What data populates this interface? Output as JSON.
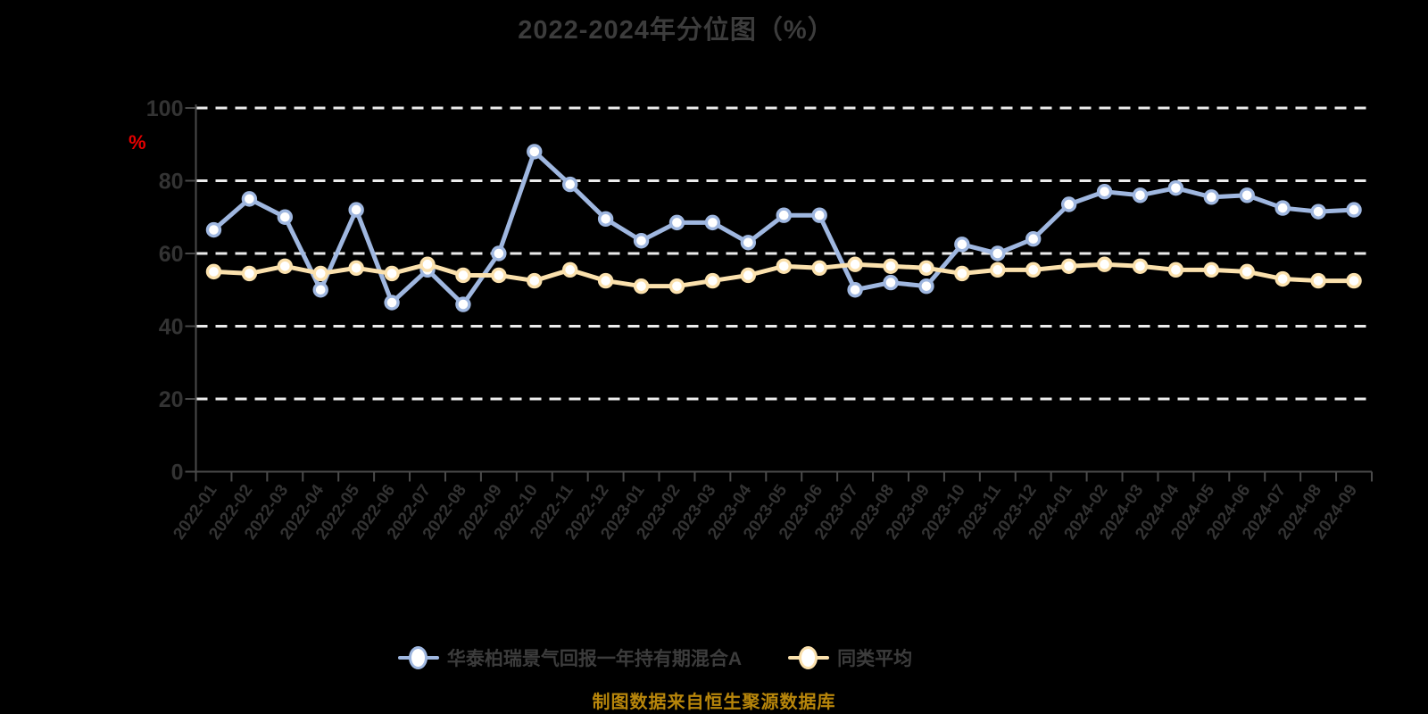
{
  "title": "2022-2024年分位图（%）",
  "y_axis_unit": "%",
  "chart_data": {
    "type": "line",
    "categories": [
      "2022-01",
      "2022-02",
      "2022-03",
      "2022-04",
      "2022-05",
      "2022-06",
      "2022-07",
      "2022-08",
      "2022-09",
      "2022-10",
      "2022-11",
      "2022-12",
      "2023-01",
      "2023-02",
      "2023-03",
      "2023-04",
      "2023-05",
      "2023-06",
      "2023-07",
      "2023-08",
      "2023-09",
      "2023-10",
      "2023-11",
      "2023-12",
      "2024-01",
      "2024-02",
      "2024-03",
      "2024-04",
      "2024-05",
      "2024-06",
      "2024-07",
      "2024-08",
      "2024-09"
    ],
    "series": [
      {
        "name": "华泰柏瑞景气回报一年持有期混合A",
        "color": "#9fb7e0",
        "marker_fill": "#ffffff",
        "values": [
          66.5,
          75,
          70,
          50,
          72,
          46.5,
          55.5,
          46,
          60,
          88,
          79,
          69.5,
          63.5,
          68.5,
          68.5,
          63,
          70.5,
          70.5,
          50,
          52,
          51,
          62.5,
          60,
          64,
          73.5,
          77,
          76,
          78,
          75.5,
          76,
          72.5,
          71.5,
          72
        ]
      },
      {
        "name": "同类平均",
        "color": "#fbe1ad",
        "marker_fill": "#ffffff",
        "values": [
          55,
          54.5,
          56.5,
          54.5,
          56,
          54.5,
          57,
          54,
          54,
          52.5,
          55.5,
          52.5,
          51,
          51,
          52.5,
          54,
          56.5,
          56,
          57,
          56.5,
          56,
          54.5,
          55.5,
          55.5,
          56.5,
          57,
          56.5,
          55.5,
          55.5,
          55,
          53,
          52.5,
          52.5
        ]
      }
    ],
    "ylim": [
      0,
      100
    ],
    "yticks": [
      0,
      20,
      40,
      60,
      80,
      100
    ],
    "ylabel": "%",
    "xlabel": "",
    "grid": "horizontal-dashed",
    "legend_position": "bottom"
  },
  "footer": {
    "caption": "制图数据来自恒生聚源数据库"
  },
  "colors": {
    "background": "#000000",
    "title_text": "#3c3c3c",
    "axis_text": "#333333",
    "axis_line": "#4a4a4a",
    "gridline": "#ececec",
    "y_unit_text": "#e60000",
    "caption_text": "#b8860b"
  }
}
